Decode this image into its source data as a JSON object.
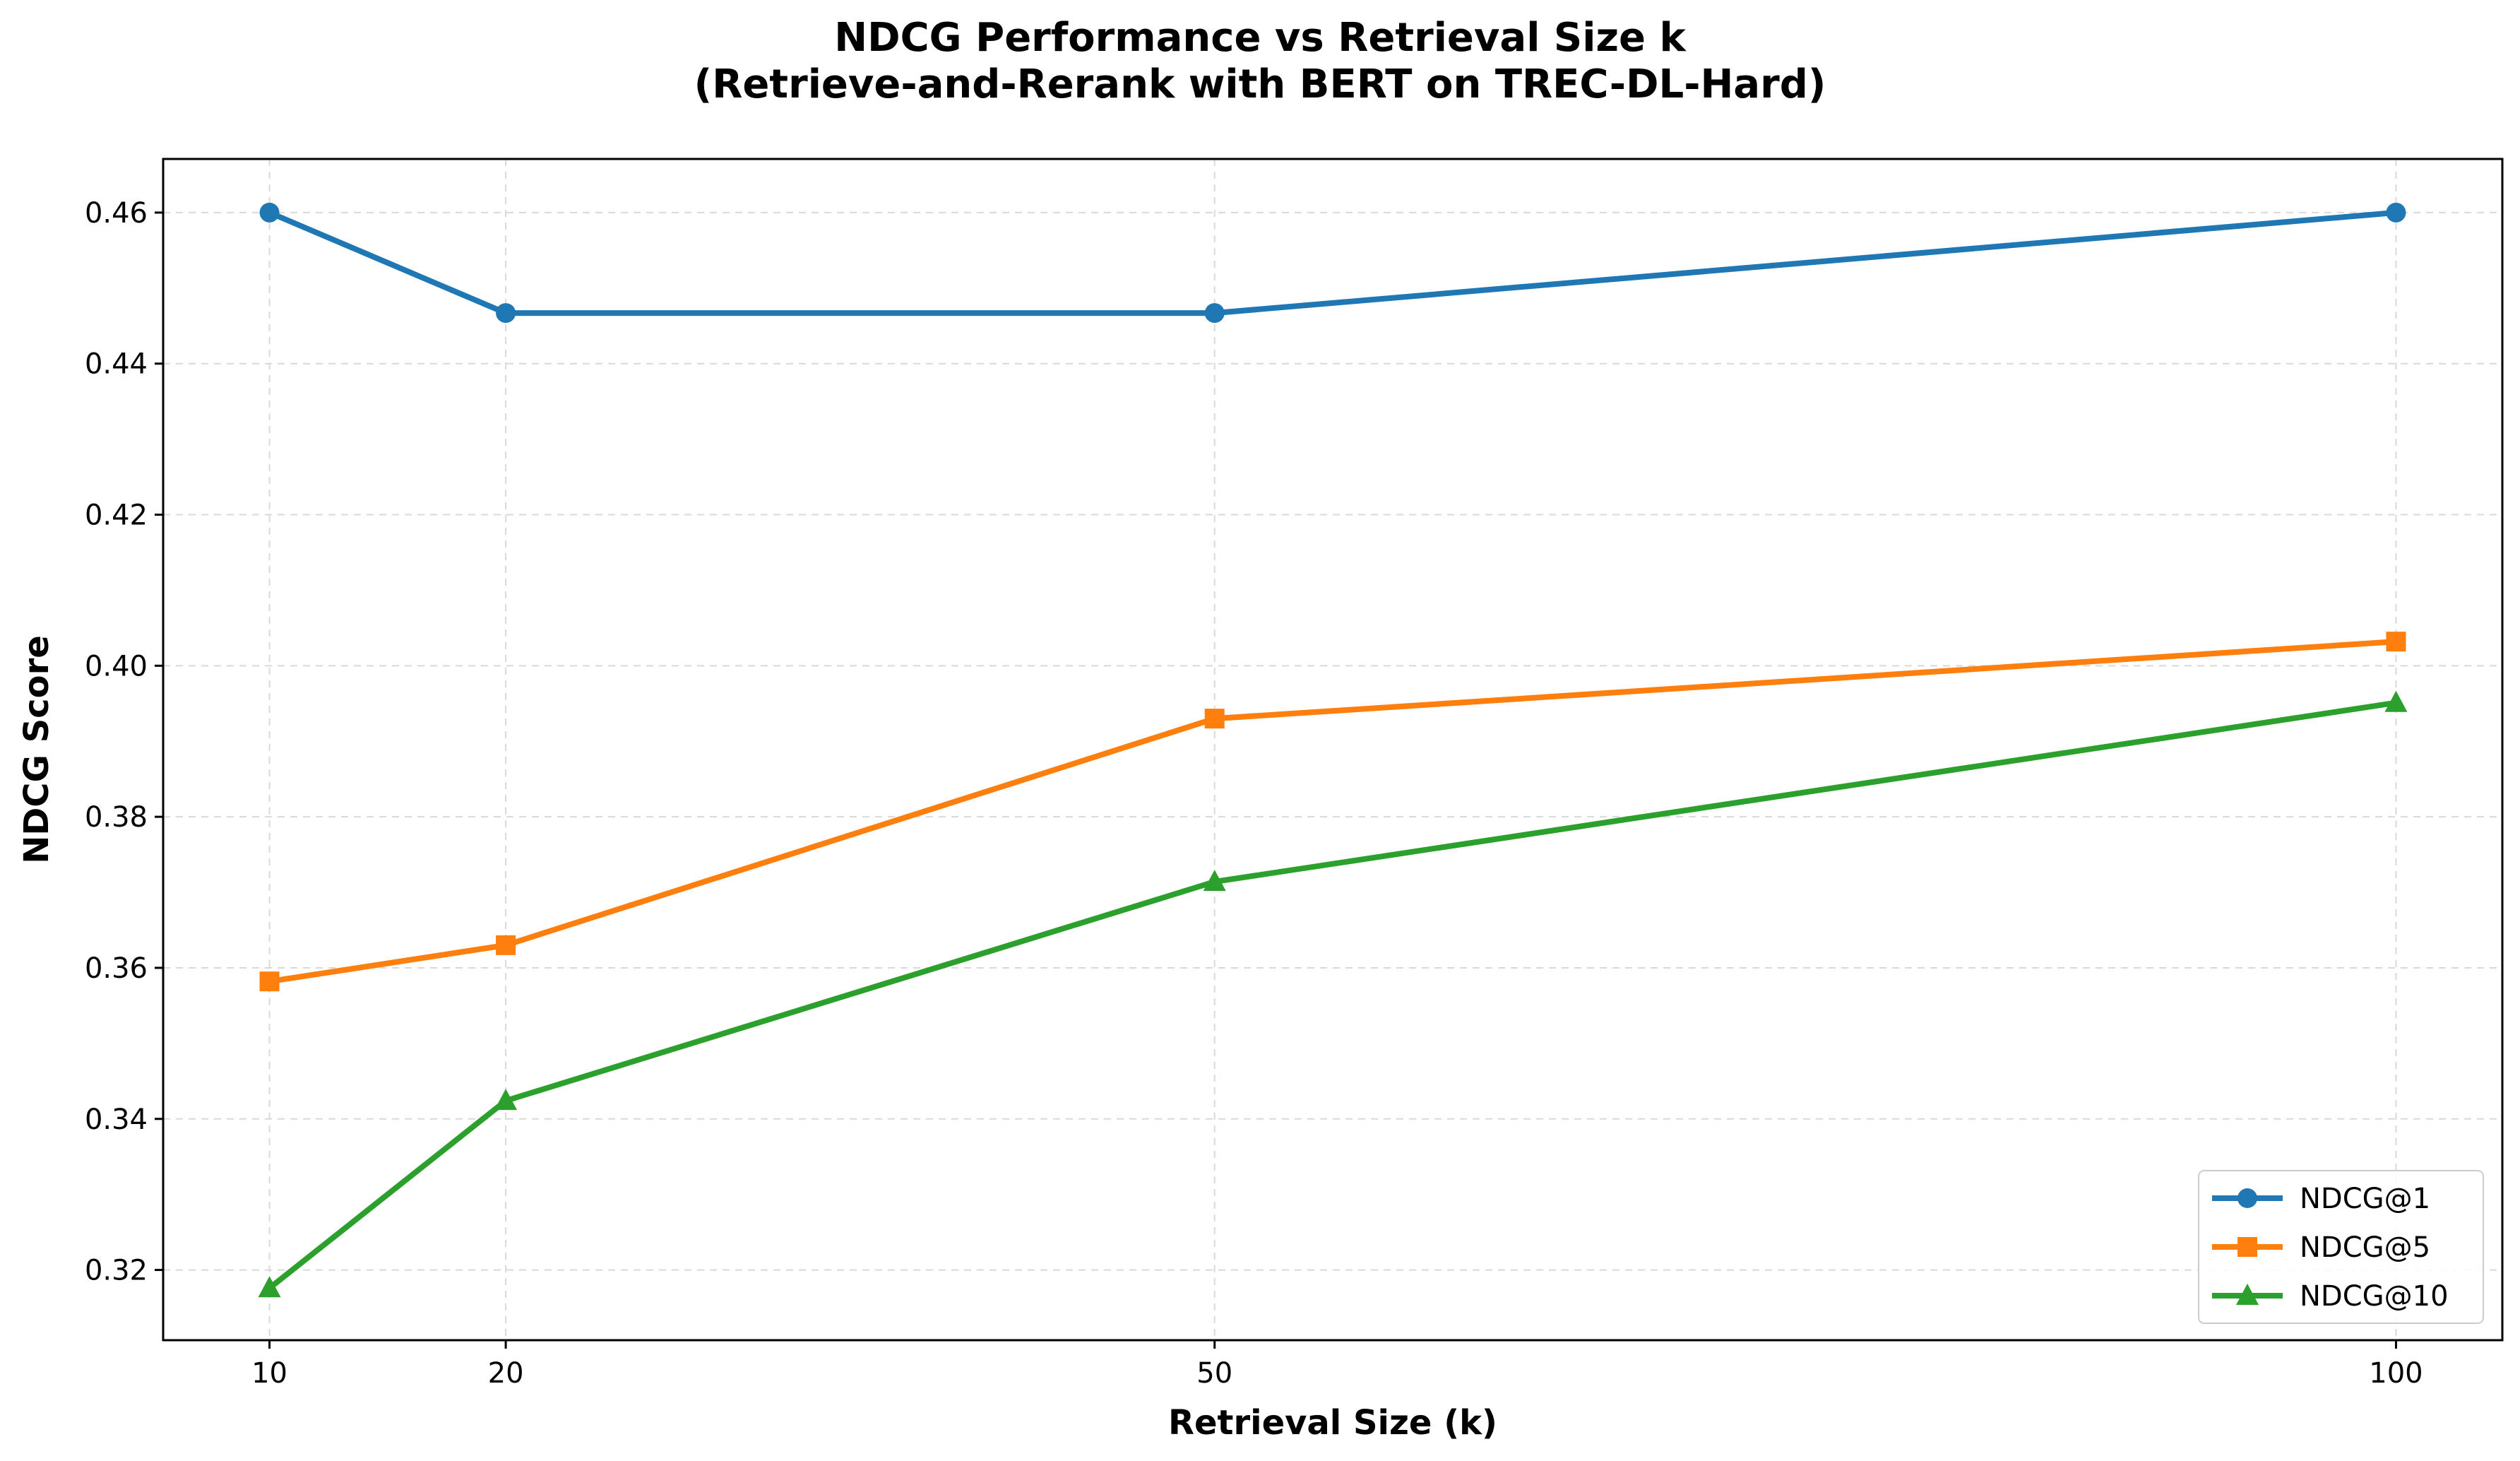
{
  "chart_data": {
    "type": "line",
    "title": [
      "NDCG Performance vs Retrieval Size k",
      "(Retrieve-and-Rerank with BERT on TREC-DL-Hard)"
    ],
    "xlabel": "Retrieval Size (k)",
    "ylabel": "NDCG Score",
    "x": [
      10,
      20,
      50,
      100
    ],
    "xticks": [
      "10",
      "20",
      "50",
      "100"
    ],
    "xlim": [
      5.5,
      104.5
    ],
    "ylim": [
      0.3107,
      0.4671
    ],
    "yticks": [
      "0.32",
      "0.34",
      "0.36",
      "0.38",
      "0.40",
      "0.42",
      "0.44",
      "0.46"
    ],
    "ytick_values": [
      0.32,
      0.34,
      0.36,
      0.38,
      0.4,
      0.42,
      0.44,
      0.46
    ],
    "grid": true,
    "legend_position": "lower-right",
    "series": [
      {
        "name": "NDCG@1",
        "color": "#1f77b4",
        "marker": "circle",
        "values": [
          0.46,
          0.4467,
          0.4467,
          0.46
        ]
      },
      {
        "name": "NDCG@5",
        "color": "#ff7f0e",
        "marker": "square",
        "values": [
          0.3582,
          0.363,
          0.393,
          0.4032
        ]
      },
      {
        "name": "NDCG@10",
        "color": "#2ca02c",
        "marker": "triangle",
        "values": [
          0.3176,
          0.3424,
          0.3714,
          0.3951
        ]
      }
    ]
  }
}
